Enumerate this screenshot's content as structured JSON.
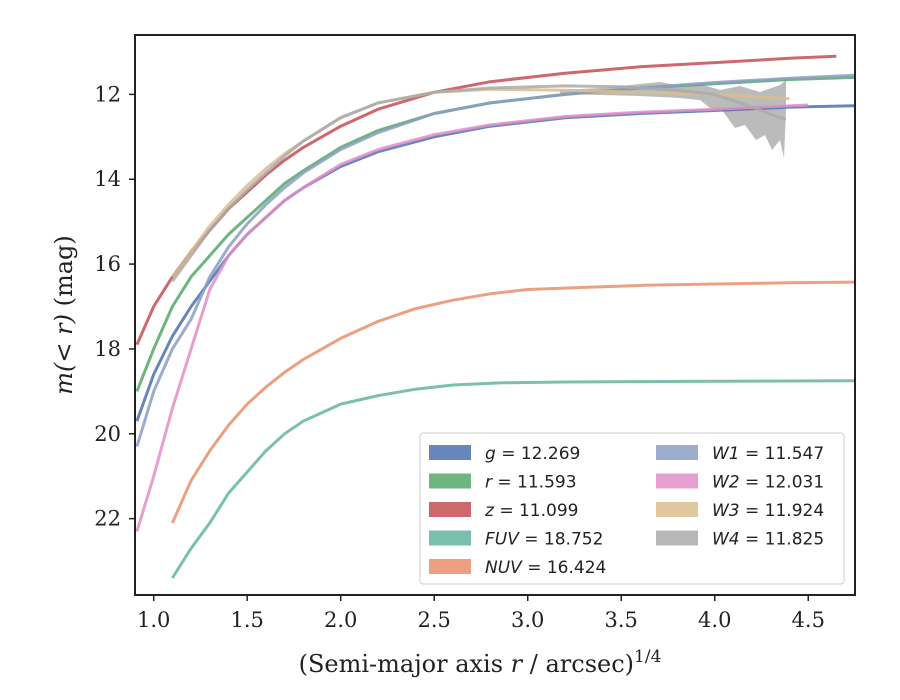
{
  "chart_data": {
    "type": "line",
    "xlabel_main": "(Semi-major axis ",
    "xlabel_var": "r",
    "xlabel_rest": " / arcsec)",
    "xlabel_sup": "1/4",
    "ylabel_pre": "m",
    "ylabel_var": "(< r)",
    "ylabel_post": " (mag)",
    "xlim": [
      0.9,
      4.75
    ],
    "ylim": [
      23.8,
      10.6
    ],
    "y_inverted": true,
    "xticks": [
      "1.0",
      "1.5",
      "2.0",
      "2.5",
      "3.0",
      "3.5",
      "4.0",
      "4.5"
    ],
    "xtick_values": [
      1.0,
      1.5,
      2.0,
      2.5,
      3.0,
      3.5,
      4.0,
      4.5
    ],
    "yticks": [
      "12",
      "14",
      "16",
      "18",
      "20",
      "22"
    ],
    "ytick_values": [
      12,
      14,
      16,
      18,
      20,
      22
    ],
    "grid": false,
    "legend_position": "lower-right",
    "legend_columns": 2,
    "series": [
      {
        "name": "g",
        "total": "12.269",
        "color": "#4c72b0",
        "x": [
          0.91,
          1.0,
          1.1,
          1.2,
          1.3,
          1.4,
          1.5,
          1.6,
          1.7,
          1.8,
          2.0,
          2.2,
          2.5,
          2.8,
          3.2,
          3.6,
          4.0,
          4.4,
          4.75
        ],
        "y": [
          19.7,
          18.6,
          17.7,
          17.0,
          16.4,
          15.8,
          15.3,
          14.9,
          14.5,
          14.2,
          13.7,
          13.35,
          13.0,
          12.75,
          12.55,
          12.45,
          12.38,
          12.3,
          12.27
        ]
      },
      {
        "name": "r",
        "total": "11.593",
        "color": "#55a868",
        "x": [
          0.91,
          1.0,
          1.1,
          1.2,
          1.3,
          1.4,
          1.5,
          1.6,
          1.7,
          1.8,
          2.0,
          2.2,
          2.5,
          2.8,
          3.2,
          3.6,
          4.0,
          4.4,
          4.75
        ],
        "y": [
          19.0,
          18.0,
          17.0,
          16.3,
          15.8,
          15.3,
          14.9,
          14.5,
          14.1,
          13.8,
          13.25,
          12.85,
          12.45,
          12.2,
          12.0,
          11.85,
          11.75,
          11.65,
          11.6
        ]
      },
      {
        "name": "z",
        "total": "11.099",
        "color": "#c44e52",
        "x": [
          0.91,
          1.0,
          1.1,
          1.2,
          1.3,
          1.4,
          1.5,
          1.6,
          1.7,
          1.8,
          2.0,
          2.2,
          2.5,
          2.8,
          3.2,
          3.6,
          4.0,
          4.4,
          4.65
        ],
        "y": [
          17.9,
          17.0,
          16.3,
          15.7,
          15.2,
          14.7,
          14.3,
          13.9,
          13.55,
          13.25,
          12.75,
          12.35,
          11.95,
          11.7,
          11.5,
          11.35,
          11.25,
          11.15,
          11.1
        ]
      },
      {
        "name": "FUV",
        "total": "18.752",
        "color": "#64b5a0",
        "x": [
          1.1,
          1.2,
          1.3,
          1.4,
          1.5,
          1.6,
          1.7,
          1.8,
          1.9,
          2.0,
          2.2,
          2.4,
          2.6,
          2.85,
          3.2,
          3.6,
          4.0,
          4.4,
          4.75
        ],
        "y": [
          23.4,
          22.7,
          22.1,
          21.4,
          20.9,
          20.4,
          20.0,
          19.7,
          19.5,
          19.3,
          19.1,
          18.95,
          18.85,
          18.8,
          18.78,
          18.77,
          18.76,
          18.755,
          18.752
        ]
      },
      {
        "name": "NUV",
        "total": "16.424",
        "color": "#e8916b",
        "x": [
          1.1,
          1.2,
          1.3,
          1.4,
          1.5,
          1.6,
          1.7,
          1.8,
          1.9,
          2.0,
          2.2,
          2.4,
          2.6,
          2.8,
          3.0,
          3.3,
          3.62,
          4.0,
          4.4,
          4.75
        ],
        "y": [
          22.1,
          21.1,
          20.4,
          19.8,
          19.3,
          18.9,
          18.55,
          18.25,
          18.0,
          17.75,
          17.35,
          17.05,
          16.85,
          16.7,
          16.6,
          16.55,
          16.5,
          16.47,
          16.44,
          16.424
        ]
      },
      {
        "name": "W1",
        "total": "11.547",
        "color": "#8c9dc4",
        "x": [
          0.91,
          1.0,
          1.1,
          1.2,
          1.3,
          1.4,
          1.5,
          1.6,
          1.7,
          1.8,
          2.0,
          2.2,
          2.5,
          2.8,
          3.2,
          3.6,
          4.0,
          4.4,
          4.75
        ],
        "y": [
          20.3,
          19.0,
          18.0,
          17.3,
          16.3,
          15.6,
          15.05,
          14.6,
          14.2,
          13.85,
          13.3,
          12.9,
          12.45,
          12.2,
          12.0,
          11.85,
          11.72,
          11.62,
          11.55
        ]
      },
      {
        "name": "W2",
        "total": "12.031",
        "color": "#e08fc7",
        "x": [
          0.91,
          1.0,
          1.1,
          1.2,
          1.3,
          1.4,
          1.5,
          1.6,
          1.7,
          1.8,
          2.0,
          2.2,
          2.5,
          2.8,
          3.2,
          3.6,
          4.0,
          4.5
        ],
        "y": [
          22.3,
          21.0,
          19.4,
          18.0,
          16.6,
          15.8,
          15.3,
          14.9,
          14.5,
          14.2,
          13.65,
          13.3,
          12.95,
          12.72,
          12.52,
          12.42,
          12.35,
          12.25
        ]
      },
      {
        "name": "W3",
        "total": "11.924",
        "color": "#dbbd8e",
        "x": [
          1.1,
          1.2,
          1.3,
          1.4,
          1.5,
          1.6,
          1.7,
          1.8,
          2.0,
          2.2,
          2.5,
          2.8,
          3.2,
          3.6,
          4.0,
          4.2,
          4.4
        ],
        "y": [
          16.3,
          15.7,
          15.1,
          14.6,
          14.15,
          13.75,
          13.4,
          13.1,
          12.55,
          12.2,
          11.95,
          11.88,
          11.9,
          11.95,
          12.0,
          12.05,
          12.1
        ]
      },
      {
        "name": "W4",
        "total": "11.825",
        "color": "#aaaaaa",
        "x": [
          1.1,
          1.2,
          1.3,
          1.4,
          1.5,
          1.6,
          1.7,
          1.8,
          2.0,
          2.2,
          2.5,
          2.8,
          3.2,
          3.5,
          3.8,
          4.0,
          4.2,
          4.38
        ],
        "y": [
          16.4,
          15.8,
          15.2,
          14.7,
          14.25,
          13.85,
          13.45,
          13.1,
          12.55,
          12.2,
          11.95,
          11.85,
          11.8,
          11.82,
          11.9,
          12.0,
          12.3,
          12.6
        ]
      }
    ]
  }
}
